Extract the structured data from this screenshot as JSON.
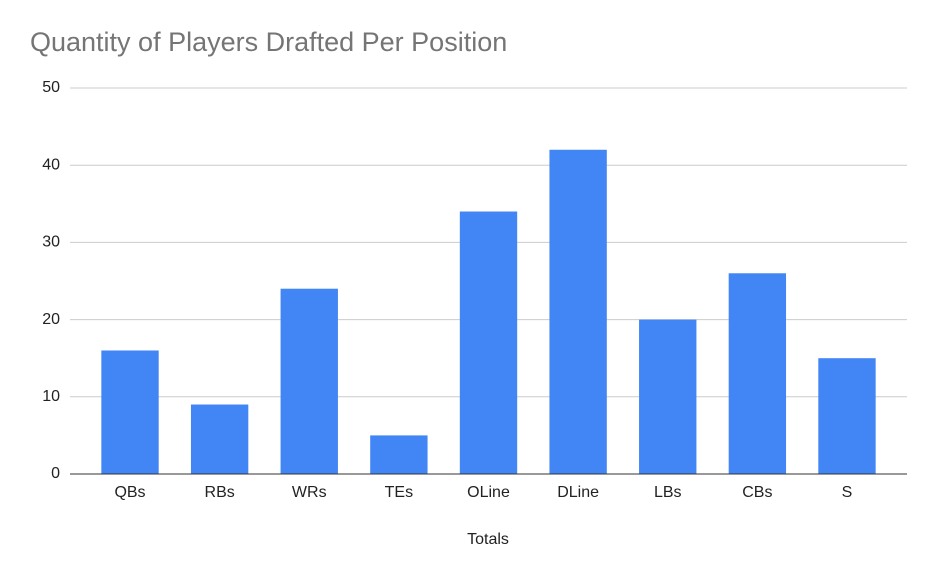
{
  "chart_data": {
    "type": "bar",
    "title": "Quantity of Players Drafted Per Position",
    "x_label": "Totals",
    "categories": [
      "QBs",
      "RBs",
      "WRs",
      "TEs",
      "OLine",
      "DLine",
      "LBs",
      "CBs",
      "S"
    ],
    "values": [
      16,
      9,
      24,
      5,
      34,
      42,
      20,
      26,
      15
    ],
    "color": "#4285f4",
    "ylim": [
      0,
      50
    ],
    "yticks": [
      0,
      10,
      20,
      30,
      40,
      50
    ],
    "grid": true
  }
}
